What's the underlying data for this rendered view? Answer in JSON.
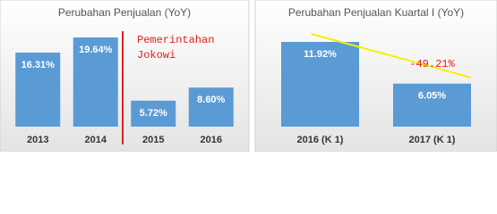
{
  "chart_data": [
    {
      "type": "bar",
      "title": "Perubahan Penjualan (YoY)",
      "categories": [
        "2013",
        "2014",
        "2015",
        "2016"
      ],
      "values": [
        16.31,
        19.64,
        5.72,
        8.6
      ],
      "value_labels": [
        "16.31%",
        "19.64%",
        "5.72%",
        "8.60%"
      ],
      "color": "#5b9bd5",
      "annotation": [
        "Pemerintahan",
        "Jokowi"
      ],
      "annotation_color": "#e0201c"
    },
    {
      "type": "bar",
      "title": "Perubahan Penjualan Kuartal I (YoY)",
      "categories": [
        "2016 (K 1)",
        "2017 (K 1)"
      ],
      "values": [
        11.92,
        6.05
      ],
      "value_labels": [
        "11.92%",
        "6.05%"
      ],
      "color": "#5b9bd5",
      "annotation": "-49.21%",
      "annotation_color": "#e0201c",
      "trendline_color": "#f5f000"
    }
  ]
}
